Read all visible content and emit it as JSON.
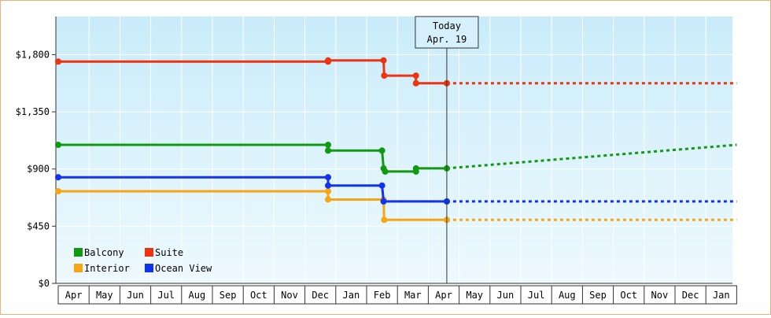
{
  "chart_data": {
    "type": "line",
    "title": "",
    "xlabel": "",
    "ylabel": "",
    "ylim": [
      0,
      2100
    ],
    "ytick_values": [
      0,
      450,
      900,
      1350,
      1800
    ],
    "ytick_labels": [
      "$0",
      "$450",
      "$900",
      "$1,350",
      "$1,800"
    ],
    "xtick_labels": [
      "Apr",
      "May",
      "Jun",
      "Jul",
      "Aug",
      "Sep",
      "Oct",
      "Nov",
      "Dec",
      "Jan",
      "Feb",
      "Mar",
      "Apr",
      "May",
      "Jun",
      "Jul",
      "Aug",
      "Sep",
      "Oct",
      "Nov",
      "Dec",
      "Jan"
    ],
    "today_marker": {
      "line1": "Today",
      "line2": "Apr. 19"
    },
    "grid": true,
    "legend_position": "bottom-left",
    "series": [
      {
        "name": "Balcony",
        "color": "#119911",
        "points": [
          [
            0.0,
            1090
          ],
          [
            8.75,
            1090
          ],
          [
            8.75,
            1045
          ],
          [
            10.5,
            1045
          ],
          [
            10.55,
            905
          ],
          [
            10.6,
            880
          ],
          [
            11.6,
            880
          ],
          [
            11.6,
            905
          ],
          [
            12.6,
            905
          ]
        ],
        "projection": [
          [
            12.6,
            905
          ],
          [
            22.0,
            1090
          ]
        ]
      },
      {
        "name": "Suite",
        "color": "#ee3311",
        "points": [
          [
            0.0,
            1745
          ],
          [
            8.75,
            1745
          ],
          [
            8.75,
            1755
          ],
          [
            10.55,
            1755
          ],
          [
            10.57,
            1635
          ],
          [
            11.6,
            1635
          ],
          [
            11.6,
            1575
          ],
          [
            12.6,
            1575
          ]
        ],
        "projection": [
          [
            12.6,
            1575
          ],
          [
            22.0,
            1575
          ]
        ]
      },
      {
        "name": "Interior",
        "color": "#f5a612",
        "points": [
          [
            0.0,
            725
          ],
          [
            8.75,
            725
          ],
          [
            8.75,
            660
          ],
          [
            10.55,
            660
          ],
          [
            10.57,
            500
          ],
          [
            12.6,
            500
          ]
        ],
        "projection": [
          [
            12.6,
            500
          ],
          [
            22.0,
            500
          ]
        ]
      },
      {
        "name": "Ocean View",
        "color": "#1133ee",
        "points": [
          [
            0.0,
            835
          ],
          [
            8.75,
            835
          ],
          [
            8.75,
            770
          ],
          [
            10.5,
            770
          ],
          [
            10.55,
            645
          ],
          [
            12.6,
            645
          ]
        ],
        "projection": [
          [
            12.6,
            645
          ],
          [
            22.0,
            645
          ]
        ]
      }
    ],
    "legend_order": [
      "Balcony",
      "Suite",
      "Interior",
      "Ocean View"
    ]
  }
}
